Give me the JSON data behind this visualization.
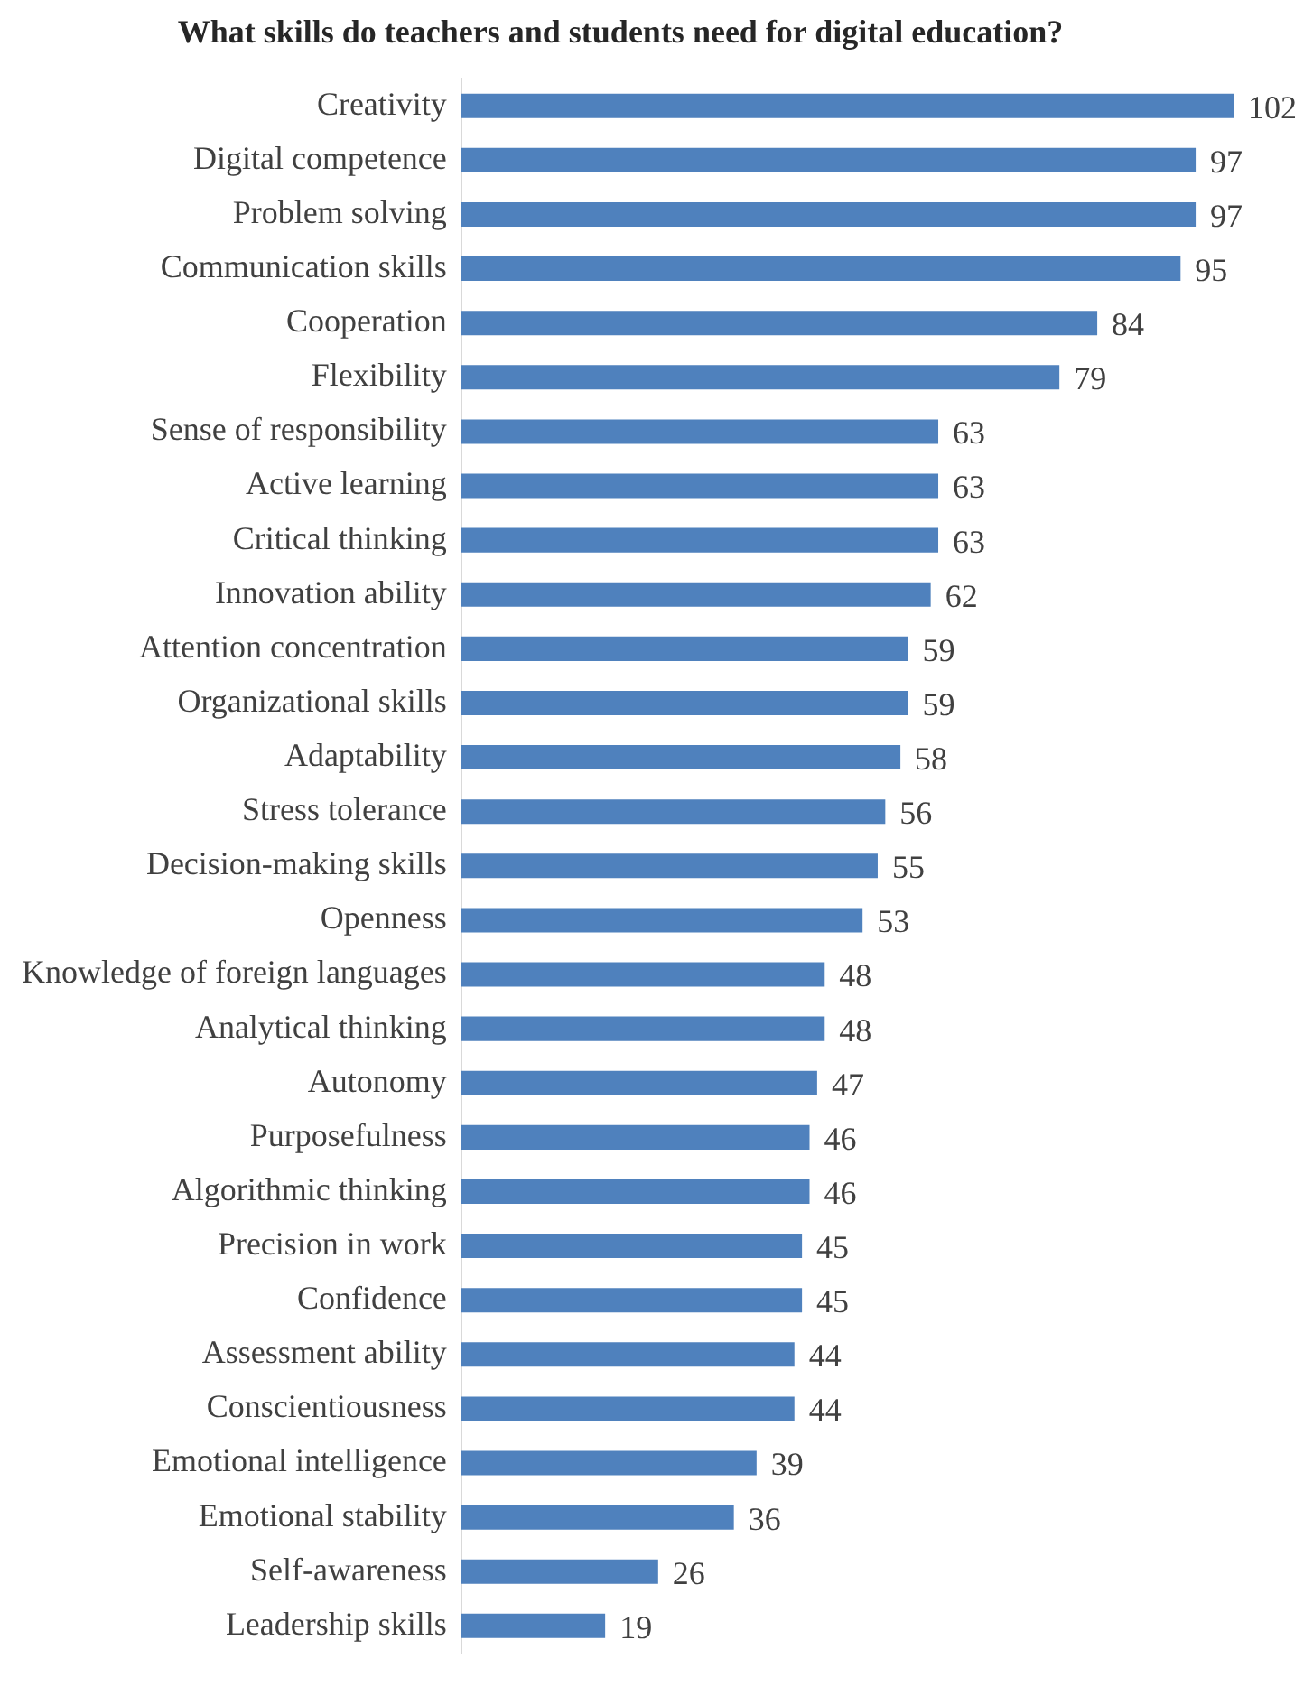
{
  "chart_data": {
    "type": "bar",
    "orientation": "horizontal",
    "title": "What skills do teachers and students need for digital education?",
    "categories": [
      "Creativity",
      "Digital competence",
      "Problem solving",
      "Communication skills",
      "Cooperation",
      "Flexibility",
      "Sense of responsibility",
      "Active learning",
      "Critical thinking",
      "Innovation ability",
      "Attention concentration",
      "Organizational skills",
      "Adaptability",
      "Stress tolerance",
      "Decision-making skills",
      "Openness",
      "Knowledge of foreign languages",
      "Analytical thinking",
      "Autonomy",
      "Purposefulness",
      "Algorithmic thinking",
      "Precision in work",
      "Confidence",
      "Assessment ability",
      "Conscientiousness",
      "Emotional intelligence",
      "Emotional stability",
      "Self-awareness",
      "Leadership skills"
    ],
    "values": [
      102,
      97,
      97,
      95,
      84,
      79,
      63,
      63,
      63,
      62,
      59,
      59,
      58,
      56,
      55,
      53,
      48,
      48,
      47,
      46,
      46,
      45,
      45,
      44,
      44,
      39,
      36,
      26,
      19
    ],
    "color": "#4f81bd",
    "data_labels": true,
    "legend": false,
    "tick_labels": "y"
  }
}
